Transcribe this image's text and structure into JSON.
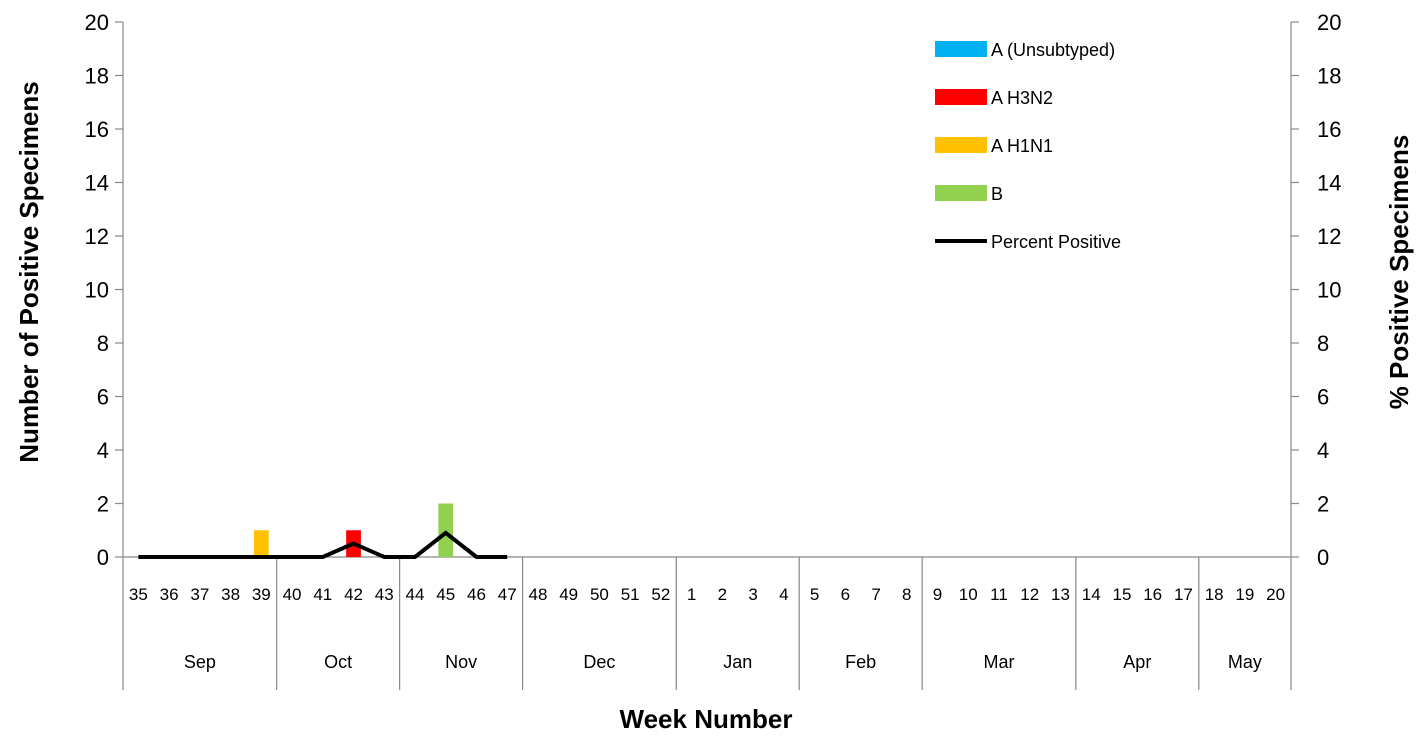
{
  "chart_data": {
    "type": "bar",
    "xlabel": "Week Number",
    "ylabel": "Number of Positive Specimens",
    "y2label": "% Positive Specimens",
    "ylim": [
      0,
      20
    ],
    "y2lim": [
      0,
      20
    ],
    "yticks": [
      0,
      2,
      4,
      6,
      8,
      10,
      12,
      14,
      16,
      18,
      20
    ],
    "y2ticks": [
      0,
      2,
      4,
      6,
      8,
      10,
      12,
      14,
      16,
      18,
      20
    ],
    "grid": false,
    "legend_position": "top-right",
    "categories": [
      "35",
      "36",
      "37",
      "38",
      "39",
      "40",
      "41",
      "42",
      "43",
      "44",
      "45",
      "46",
      "47",
      "48",
      "49",
      "50",
      "51",
      "52",
      "1",
      "2",
      "3",
      "4",
      "5",
      "6",
      "7",
      "8",
      "9",
      "10",
      "11",
      "12",
      "13",
      "14",
      "15",
      "16",
      "17",
      "18",
      "19",
      "20"
    ],
    "months": [
      {
        "label": "Sep",
        "weeks": 5
      },
      {
        "label": "Oct",
        "weeks": 4
      },
      {
        "label": "Nov",
        "weeks": 4
      },
      {
        "label": "Dec",
        "weeks": 5
      },
      {
        "label": "Jan",
        "weeks": 4
      },
      {
        "label": "Feb",
        "weeks": 4
      },
      {
        "label": "Mar",
        "weeks": 5
      },
      {
        "label": "Apr",
        "weeks": 4
      },
      {
        "label": "May",
        "weeks": 3
      }
    ],
    "series": [
      {
        "name": "A (Unsubtyped)",
        "kind": "bar",
        "color": "#00B0F0",
        "values": [
          0,
          0,
          0,
          0,
          0,
          0,
          0,
          0,
          0,
          0,
          0,
          0,
          0,
          null,
          null,
          null,
          null,
          null,
          null,
          null,
          null,
          null,
          null,
          null,
          null,
          null,
          null,
          null,
          null,
          null,
          null,
          null,
          null,
          null,
          null,
          null,
          null,
          null
        ]
      },
      {
        "name": "A H3N2",
        "kind": "bar",
        "color": "#FF0000",
        "values": [
          0,
          0,
          0,
          0,
          0,
          0,
          0,
          1,
          0,
          0,
          0,
          0,
          0,
          null,
          null,
          null,
          null,
          null,
          null,
          null,
          null,
          null,
          null,
          null,
          null,
          null,
          null,
          null,
          null,
          null,
          null,
          null,
          null,
          null,
          null,
          null,
          null,
          null
        ]
      },
      {
        "name": "A H1N1",
        "kind": "bar",
        "color": "#FFC000",
        "values": [
          0,
          0,
          0,
          0,
          1,
          0,
          0,
          0,
          0,
          0,
          0,
          0,
          0,
          null,
          null,
          null,
          null,
          null,
          null,
          null,
          null,
          null,
          null,
          null,
          null,
          null,
          null,
          null,
          null,
          null,
          null,
          null,
          null,
          null,
          null,
          null,
          null,
          null
        ]
      },
      {
        "name": "B",
        "kind": "bar",
        "color": "#92D050",
        "values": [
          0,
          0,
          0,
          0,
          0,
          0,
          0,
          0,
          0,
          0,
          2,
          0,
          0,
          null,
          null,
          null,
          null,
          null,
          null,
          null,
          null,
          null,
          null,
          null,
          null,
          null,
          null,
          null,
          null,
          null,
          null,
          null,
          null,
          null,
          null,
          null,
          null,
          null
        ]
      },
      {
        "name": "Percent Positive",
        "kind": "line",
        "axis": "right",
        "color": "#000000",
        "values": [
          0,
          0,
          0,
          0,
          0,
          0,
          0,
          0.5,
          0,
          0,
          0.9,
          0,
          0,
          null,
          null,
          null,
          null,
          null,
          null,
          null,
          null,
          null,
          null,
          null,
          null,
          null,
          null,
          null,
          null,
          null,
          null,
          null,
          null,
          null,
          null,
          null,
          null,
          null
        ]
      }
    ]
  }
}
